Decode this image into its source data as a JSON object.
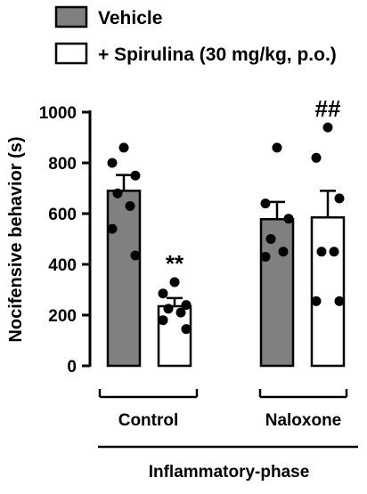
{
  "chart_data": {
    "type": "bar",
    "ylabel": "Nocifensive behavior (s)",
    "ylim": [
      0,
      1000
    ],
    "yticks": [
      0,
      200,
      400,
      600,
      800,
      1000
    ],
    "groups": [
      "Control",
      "Naloxone"
    ],
    "group_label": "Inflammatory-phase",
    "series": [
      {
        "name": "Vehicle",
        "color": "#808080",
        "values": [
          690,
          578
        ],
        "errors": [
          62,
          68
        ],
        "points": [
          [
            860,
            800,
            750,
            680,
            630,
            540,
            435
          ],
          [
            860,
            640,
            580,
            500,
            450,
            430
          ]
        ]
      },
      {
        "name": "+ Spirulina (30 mg/kg, p.o.)",
        "color": "#ffffff",
        "values": [
          235,
          585
        ],
        "errors": [
          32,
          105
        ],
        "points": [
          [
            330,
            285,
            240,
            225,
            210,
            180,
            145
          ],
          [
            940,
            820,
            660,
            450,
            450,
            255,
            255
          ]
        ]
      }
    ],
    "annotations": [
      {
        "text": "**",
        "group": 0,
        "series": 1
      },
      {
        "text": "##",
        "group": 1,
        "series": 1
      }
    ],
    "legend_position": "top"
  }
}
